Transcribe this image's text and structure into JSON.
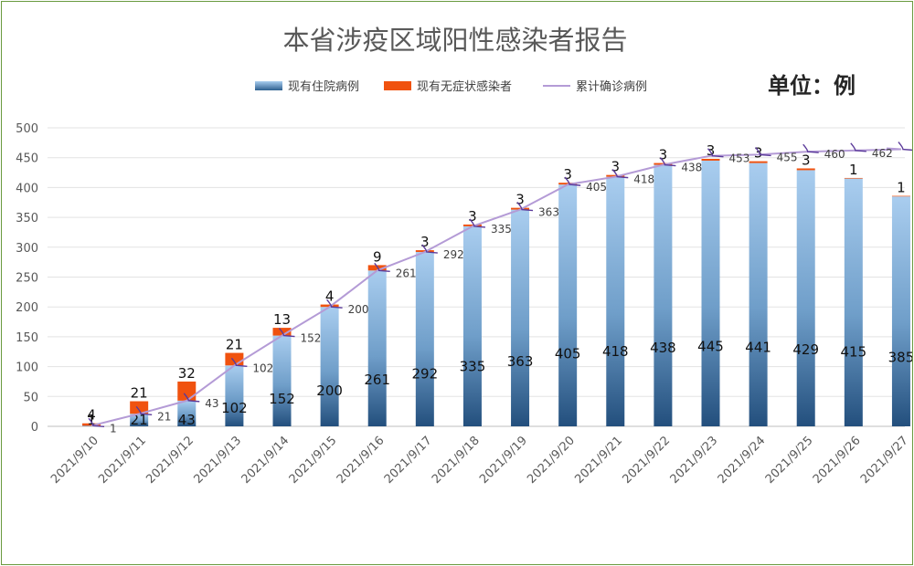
{
  "chart_data": {
    "type": "bar",
    "title": "本省涉疫区域阳性感染者报告",
    "unit_label": "单位：例",
    "categories": [
      "2021/9/10",
      "2021/9/11",
      "2021/9/12",
      "2021/9/13",
      "2021/9/14",
      "2021/9/15",
      "2021/9/16",
      "2021/9/17",
      "2021/9/18",
      "2021/9/19",
      "2021/9/20",
      "2021/9/21",
      "2021/9/22",
      "2021/9/23",
      "2021/9/24",
      "2021/9/25",
      "2021/9/26",
      "2021/9/27"
    ],
    "series": [
      {
        "name": "现有住院病例",
        "kind": "stacked-bar",
        "color": "#2e5f8f",
        "values": [
          1,
          21,
          43,
          102,
          152,
          200,
          261,
          292,
          335,
          363,
          405,
          418,
          438,
          445,
          441,
          429,
          415,
          385
        ]
      },
      {
        "name": "现有无症状感染者",
        "kind": "stacked-bar",
        "color": "#f0520f",
        "values": [
          4,
          21,
          32,
          21,
          13,
          4,
          9,
          3,
          3,
          3,
          3,
          3,
          3,
          3,
          3,
          3,
          1,
          1
        ]
      },
      {
        "name": "累计确诊病例",
        "kind": "line",
        "color": "#b49bd6",
        "values": [
          1,
          21,
          43,
          102,
          152,
          200,
          261,
          292,
          335,
          363,
          405,
          418,
          438,
          453,
          455,
          460,
          462,
          464
        ]
      }
    ],
    "ylim": [
      0,
      500
    ],
    "yticks": [
      0,
      50,
      100,
      150,
      200,
      250,
      300,
      350,
      400,
      450,
      500
    ],
    "grid": true,
    "legend": "top-center"
  }
}
